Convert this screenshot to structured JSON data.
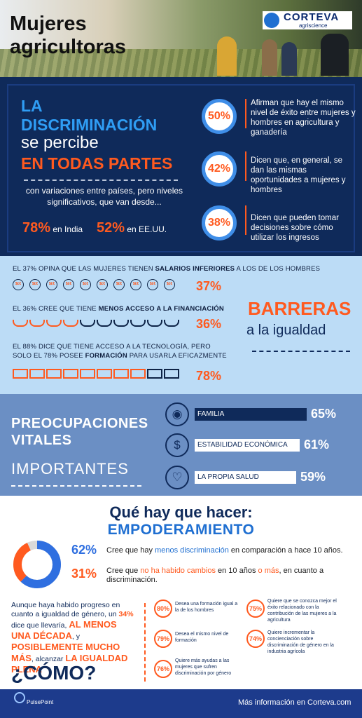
{
  "header": {
    "title_line1": "Mujeres",
    "title_line2": "agricultoras",
    "logo_name": "CORTEVA",
    "logo_sub": "agriscience"
  },
  "discrimination": {
    "line1": "LA",
    "line2": "DISCRIMINACIÓN",
    "line3": "se percibe",
    "line4": "EN TODAS PARTES",
    "variation": "con variaciones entre países, pero niveles significativos, que van desde...",
    "india_pct": "78%",
    "india_label": "en India",
    "usa_pct": "52%",
    "usa_label": "en EE.UU.",
    "stats": [
      {
        "pct": "50%",
        "text": "Afirman que hay el mismo nivel de éxito entre mujeres y hombres en agricultura y ganadería"
      },
      {
        "pct": "42%",
        "text": "Dicen que, en general, se dan las mismas oportunidades a mujeres y hombres"
      },
      {
        "pct": "38%",
        "text": "Dicen que pueden tomar decisiones sobre cómo utilizar los ingresos"
      }
    ]
  },
  "barriers": {
    "b1_pre": "EL 37% OPINA QUE LAS MUJERES TIENEN ",
    "b1_bold": "SALARIOS INFERIORES",
    "b1_post": " A LOS DE LOS HOMBRES",
    "b1_pct": "37%",
    "b2_pre": "EL 36% CREE QUE TIENE ",
    "b2_bold": "MENOS ACCESO A LA FINANCIACIÓN",
    "b2_pct": "36%",
    "b3_line1": "EL 88% DICE QUE TIENE ACCESO A LA TECNOLOGÍA, PERO",
    "b3_pre": "SOLO EL 78% POSEE ",
    "b3_bold": "FORMACIÓN",
    "b3_post": " PARA USARLA EFICAZMENTE",
    "b3_pct": "78%",
    "title": "BARRERAS",
    "subtitle": "a la igualdad",
    "coin_glyph": "$£€"
  },
  "concerns": {
    "title_line1": "PREOCUPACIONES",
    "title_line2": "VITALES",
    "title_line3": "IMPORTANTES",
    "items": [
      {
        "label": "FAMILIA",
        "pct": "65%",
        "value": 65,
        "icon": "family-icon"
      },
      {
        "label": "ESTABILIDAD ECONÓMICA",
        "pct": "61%",
        "value": 61,
        "icon": "dollar-icon"
      },
      {
        "label": "LA PROPIA SALUD",
        "pct": "59%",
        "value": 59,
        "icon": "heart-icon"
      }
    ]
  },
  "action": {
    "title": "Qué hay que hacer:",
    "subtitle": "EMPODERAMIENTO",
    "r1_pct": "62%",
    "r1_pre": "Cree que hay ",
    "r1_hl": "menos discriminación",
    "r1_post": " en comparación a hace 10 años.",
    "r2_pct": "31%",
    "r2_pre": "Cree que ",
    "r2_hl": "no ha habido cambios",
    "r2_mid": " en 10 años ",
    "r2_hl2": "o más",
    "r2_post": ", en cuanto a discriminación.",
    "donut_blue": 62,
    "donut_orange": 31,
    "para_pre": "Aunque haya habido progreso en cuanto a igualdad de género, un ",
    "para_pct": "34%",
    "para_mid": " dice que llevaría, ",
    "para_caps": "AL MENOS UNA DÉCADA",
    "para_y": ", y ",
    "para_caps2": "POSIBLEMENTE MUCHO MÁS",
    "para_post": ", alcanzar ",
    "para_caps3": "LA IGUALDAD PLENA",
    "como": "¿CÓMO?",
    "items": [
      {
        "pct": "80%",
        "text": "Desea una formación igual a la de los hombres"
      },
      {
        "pct": "79%",
        "text": "Desea el mismo nivel de formación"
      },
      {
        "pct": "76%",
        "text": "Quiere más ayudas a las mujeres que sufren discriminación por género"
      },
      {
        "pct": "75%",
        "text": "Quiere que se conozca mejor el éxito relacionado con la contribución de las mujeres a la agricultura"
      },
      {
        "pct": "74%",
        "text": "Quiere incrementar la concienciación sobre discriminación de género en la industria agrícola"
      }
    ]
  },
  "footer": {
    "brand": "PulsePoint",
    "more": "Más información en Corteva.com"
  }
}
